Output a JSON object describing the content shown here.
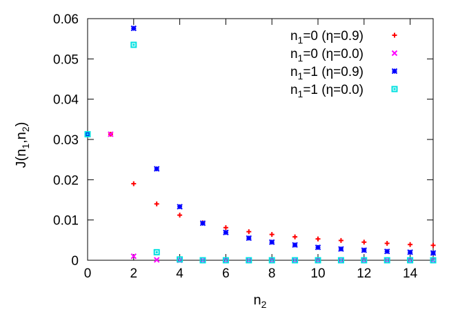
{
  "chart_data": {
    "type": "scatter",
    "title": "",
    "xlabel": {
      "base": "n",
      "sub": "2"
    },
    "ylabel": {
      "prefix": "J(n",
      "sub1": "1",
      "mid": ",n",
      "sub2": "2",
      "suffix": ")"
    },
    "xlim": [
      0,
      15
    ],
    "ylim": [
      0,
      0.06
    ],
    "xticks": [
      "0",
      "2",
      "4",
      "6",
      "8",
      "10",
      "12",
      "14"
    ],
    "yticks": [
      "0",
      "0.01",
      "0.02",
      "0.03",
      "0.04",
      "0.05",
      "0.06"
    ],
    "grid": false,
    "legend_position": "top-right",
    "series": [
      {
        "label": {
          "base": "n",
          "sub": "1",
          "rest": "=0 (η=0.9)"
        },
        "marker": "plus",
        "color": "#ff0000",
        "points": [
          [
            0,
            0.0313
          ],
          [
            1,
            0.0313
          ],
          [
            2,
            0.019
          ],
          [
            3,
            0.014
          ],
          [
            4,
            0.0112
          ],
          [
            5,
            0.0093
          ],
          [
            6,
            0.0081
          ],
          [
            7,
            0.0071
          ],
          [
            8,
            0.0064
          ],
          [
            9,
            0.0058
          ],
          [
            10,
            0.0053
          ],
          [
            11,
            0.0049
          ],
          [
            12,
            0.0045
          ],
          [
            13,
            0.0042
          ],
          [
            14,
            0.0039
          ],
          [
            15,
            0.0037
          ]
        ]
      },
      {
        "label": {
          "base": "n",
          "sub": "1",
          "rest": "=0 (η=0.0)"
        },
        "marker": "cross",
        "color": "#ff00ff",
        "points": [
          [
            0,
            0.0313
          ],
          [
            1,
            0.0313
          ],
          [
            2,
            0.001
          ],
          [
            3,
            0.0001
          ],
          [
            4,
            0
          ],
          [
            5,
            0
          ],
          [
            6,
            0
          ],
          [
            7,
            0
          ],
          [
            8,
            0
          ],
          [
            9,
            0
          ],
          [
            10,
            0
          ],
          [
            11,
            0
          ],
          [
            12,
            0
          ],
          [
            13,
            0
          ],
          [
            14,
            0
          ],
          [
            15,
            0
          ]
        ]
      },
      {
        "label": {
          "base": "n",
          "sub": "1",
          "rest": "=1 (η=0.9)"
        },
        "marker": "star",
        "color": "#0000ff",
        "points": [
          [
            0,
            0.0313
          ],
          [
            2,
            0.0576
          ],
          [
            3,
            0.0227
          ],
          [
            4,
            0.0133
          ],
          [
            5,
            0.0092
          ],
          [
            6,
            0.0069
          ],
          [
            7,
            0.0055
          ],
          [
            8,
            0.0045
          ],
          [
            9,
            0.0038
          ],
          [
            10,
            0.0032
          ],
          [
            11,
            0.0028
          ],
          [
            12,
            0.0025
          ],
          [
            13,
            0.0022
          ],
          [
            14,
            0.002
          ],
          [
            15,
            0.0018
          ]
        ]
      },
      {
        "label": {
          "base": "n",
          "sub": "1",
          "rest": "=1 (η=0.0)"
        },
        "marker": "box",
        "color": "#00e0e0",
        "points": [
          [
            0,
            0.0313
          ],
          [
            2,
            0.0535
          ],
          [
            3,
            0.002
          ],
          [
            4,
            0.0002
          ],
          [
            5,
            0
          ],
          [
            6,
            0
          ],
          [
            7,
            0
          ],
          [
            8,
            0
          ],
          [
            9,
            0
          ],
          [
            10,
            0
          ],
          [
            11,
            0
          ],
          [
            12,
            0
          ],
          [
            13,
            0
          ],
          [
            14,
            0
          ],
          [
            15,
            0
          ]
        ]
      }
    ]
  }
}
